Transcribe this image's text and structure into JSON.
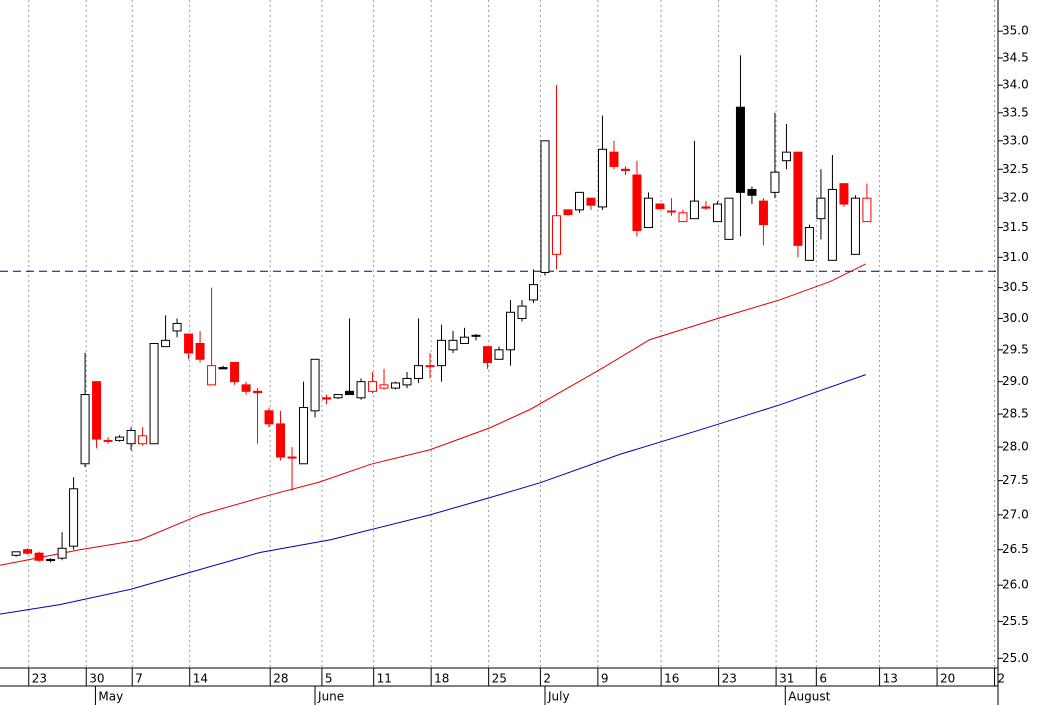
{
  "chart_data": {
    "type": "candlestick",
    "log_scale": true,
    "grid": true,
    "x": [
      1.4,
      2.4,
      3.4,
      4.4,
      5.4,
      6.4,
      7.4,
      8.4,
      9.4,
      10.4,
      11.4,
      12.4,
      13.4,
      14.4,
      15.4,
      16.4,
      17.4,
      18.4,
      19.4,
      20.4,
      21.4,
      22.4,
      23.4,
      24.4,
      25.4,
      26.4,
      27.4,
      28.4,
      29.4,
      30.4,
      31.4,
      32.4,
      33.4,
      34.4,
      35.4,
      36.4,
      37.4,
      38.4,
      39.4,
      40.4,
      41.4,
      42.4,
      43.4,
      44.4,
      45.4,
      46.4,
      47.4,
      48.4,
      49.4,
      50.4,
      51.4,
      52.4,
      53.4,
      54.4,
      55.4,
      56.4,
      57.4,
      58.4,
      59.4,
      60.4,
      61.4,
      62.4,
      63.4,
      64.4,
      65.4,
      66.4,
      67.4,
      68.4,
      69.4,
      70.4,
      71.4,
      72.4,
      73.4,
      74.4,
      75.4
    ],
    "open": [
      26.42,
      26.5,
      26.45,
      26.35,
      26.38,
      26.55,
      27.75,
      29.0,
      28.1,
      28.1,
      28.05,
      28.05,
      28.05,
      29.55,
      29.8,
      29.75,
      29.6,
      28.95,
      29.22,
      29.3,
      28.95,
      28.85,
      28.55,
      28.35,
      27.85,
      27.75,
      28.55,
      28.75,
      28.75,
      28.85,
      28.75,
      28.85,
      28.9,
      28.9,
      28.95,
      29.05,
      29.25,
      29.25,
      29.5,
      29.6,
      29.73,
      29.55,
      29.35,
      29.5,
      30.0,
      30.3,
      30.75,
      31.05,
      31.8,
      31.8,
      32.0,
      31.85,
      32.8,
      32.5,
      32.4,
      31.5,
      31.9,
      31.78,
      31.6,
      31.65,
      31.85,
      31.6,
      31.3,
      33.6,
      32.15,
      31.95,
      32.1,
      32.65,
      32.8,
      30.95,
      31.65,
      30.95,
      32.25,
      31.05,
      31.6
    ],
    "high": [
      26.47,
      26.52,
      26.47,
      26.38,
      26.75,
      27.55,
      29.45,
      29.0,
      28.15,
      28.18,
      28.3,
      28.3,
      29.6,
      30.05,
      30.0,
      29.75,
      29.8,
      30.5,
      29.25,
      29.3,
      29.0,
      28.9,
      28.6,
      28.55,
      28.0,
      29.0,
      29.35,
      28.8,
      28.8,
      30.0,
      29.05,
      29.15,
      29.2,
      29.0,
      29.15,
      30.0,
      29.45,
      29.9,
      29.8,
      29.85,
      29.75,
      29.55,
      29.55,
      30.3,
      30.3,
      30.8,
      33.0,
      34.0,
      31.8,
      32.1,
      32.0,
      33.45,
      33.0,
      32.55,
      32.65,
      32.1,
      31.9,
      32.0,
      31.8,
      33.0,
      31.95,
      31.95,
      32.0,
      34.55,
      32.2,
      32.0,
      33.5,
      33.3,
      32.8,
      31.55,
      32.5,
      32.75,
      32.25,
      32.05,
      32.25
    ],
    "low": [
      26.4,
      26.43,
      26.33,
      26.32,
      26.35,
      26.5,
      27.7,
      27.98,
      28.05,
      28.08,
      27.95,
      28.02,
      28.05,
      29.55,
      29.7,
      29.35,
      29.3,
      28.95,
      29.2,
      28.95,
      28.8,
      28.05,
      28.3,
      27.8,
      27.35,
      27.75,
      28.45,
      28.65,
      28.73,
      28.8,
      28.72,
      28.82,
      28.88,
      28.88,
      28.9,
      28.98,
      29.05,
      29.0,
      29.45,
      29.6,
      29.65,
      29.2,
      29.35,
      29.25,
      29.95,
      30.25,
      30.7,
      30.8,
      31.7,
      31.75,
      31.8,
      31.8,
      32.5,
      32.4,
      31.35,
      31.5,
      31.8,
      31.7,
      31.6,
      31.65,
      31.8,
      31.6,
      31.3,
      31.35,
      31.9,
      31.2,
      32.0,
      32.5,
      31.0,
      30.95,
      31.3,
      30.95,
      31.85,
      31.05,
      31.6
    ],
    "close": [
      26.47,
      26.45,
      26.35,
      26.36,
      26.52,
      27.38,
      28.8,
      28.12,
      28.1,
      28.15,
      28.25,
      28.17,
      29.6,
      29.65,
      29.92,
      29.45,
      29.35,
      29.25,
      29.2,
      29.0,
      28.85,
      28.83,
      28.35,
      27.85,
      27.85,
      28.6,
      29.35,
      28.73,
      28.8,
      28.8,
      29.0,
      29.0,
      28.95,
      28.98,
      29.05,
      29.25,
      29.25,
      29.65,
      29.65,
      29.7,
      29.73,
      29.3,
      29.5,
      30.1,
      30.2,
      30.55,
      33.0,
      31.7,
      31.72,
      32.1,
      31.88,
      32.85,
      32.55,
      32.48,
      31.45,
      32.0,
      31.82,
      31.78,
      31.75,
      31.95,
      31.83,
      31.9,
      32.0,
      32.1,
      32.05,
      31.55,
      32.45,
      32.8,
      31.2,
      31.5,
      32.0,
      32.15,
      31.9,
      32.0,
      32.0
    ],
    "colors": [
      "black",
      "red",
      "red",
      "black",
      "black",
      "black",
      "black",
      "red",
      "red",
      "black",
      "black",
      "red",
      "black",
      "black",
      "black",
      "red",
      "red",
      "red",
      "black",
      "red",
      "red",
      "red",
      "red",
      "red",
      "red",
      "black",
      "black",
      "red",
      "black",
      "black",
      "black",
      "red",
      "red",
      "black",
      "black",
      "black",
      "red",
      "black",
      "black",
      "black",
      "black",
      "red",
      "black",
      "black",
      "black",
      "black",
      "black",
      "red",
      "red",
      "black",
      "red",
      "black",
      "red",
      "red",
      "red",
      "black",
      "red",
      "red",
      "red",
      "black",
      "red",
      "black",
      "black",
      "black",
      "black",
      "red",
      "black",
      "black",
      "red",
      "black",
      "black",
      "black",
      "red",
      "black",
      "red"
    ],
    "moving_averages": [
      {
        "color": "#e00000",
        "x": [
          0,
          7,
          12.2,
          17.4,
          23.5,
          27.8,
          32.2,
          37.4,
          42.6,
          46.1,
          52.2,
          56.5,
          62.6,
          67.8,
          72.2,
          75.3
        ],
        "values": [
          26.28,
          26.5,
          26.64,
          27.0,
          27.29,
          27.48,
          27.74,
          27.96,
          28.29,
          28.57,
          29.19,
          29.66,
          30.01,
          30.3,
          30.6,
          30.89
        ]
      },
      {
        "color": "#0000b0",
        "x": [
          0,
          5.2,
          11.3,
          17.4,
          22.6,
          28.7,
          37.4,
          42.6,
          47,
          53.9,
          60.9,
          67.8,
          75.3
        ],
        "values": [
          25.6,
          25.73,
          25.94,
          26.22,
          26.46,
          26.64,
          27.0,
          27.25,
          27.47,
          27.89,
          28.26,
          28.64,
          29.11
        ]
      }
    ],
    "hline": 30.77,
    "hline_color": "#000080",
    "xlim": [
      0,
      86.8
    ],
    "ylim": [
      24.87,
      35.59
    ],
    "xticks": [
      {
        "value": 2.5,
        "label": "23"
      },
      {
        "value": 7.5,
        "label": "30"
      },
      {
        "value": 11.5,
        "label": "7"
      },
      {
        "value": 16.5,
        "label": "14"
      },
      {
        "value": 23.5,
        "label": "28"
      },
      {
        "value": 28,
        "label": "5"
      },
      {
        "value": 32.5,
        "label": "11"
      },
      {
        "value": 37.5,
        "label": "18"
      },
      {
        "value": 42.5,
        "label": "25"
      },
      {
        "value": 47,
        "label": "2"
      },
      {
        "value": 52,
        "label": "9"
      },
      {
        "value": 57.5,
        "label": "16"
      },
      {
        "value": 62.5,
        "label": "23"
      },
      {
        "value": 67.5,
        "label": "31"
      },
      {
        "value": 71,
        "label": "6"
      },
      {
        "value": 76.5,
        "label": "13"
      },
      {
        "value": 81.5,
        "label": "20"
      },
      {
        "value": 86.5,
        "label": "2"
      }
    ],
    "month_ticks": [
      {
        "value": 8.3,
        "label": "May"
      },
      {
        "value": 27.4,
        "label": "June"
      },
      {
        "value": 47.4,
        "label": "July"
      },
      {
        "value": 68.3,
        "label": "August"
      }
    ],
    "yticks": [
      {
        "value": 25,
        "label": "25.0"
      },
      25.5,
      {
        "value": 26,
        "label": "26.0"
      },
      26.5,
      {
        "value": 27,
        "label": "27.0"
      },
      27.5,
      {
        "value": 28,
        "label": "28.0"
      },
      28.5,
      {
        "value": 29,
        "label": "29.0"
      },
      29.5,
      {
        "value": 30,
        "label": "30.0"
      },
      30.5,
      {
        "value": 31,
        "label": "31.0"
      },
      31.5,
      {
        "value": 32,
        "label": "32.0"
      },
      32.5,
      {
        "value": 33,
        "label": "33.0"
      },
      33.5,
      {
        "value": 34,
        "label": "34.0"
      },
      34.5,
      {
        "value": 35,
        "label": "35.0"
      }
    ]
  }
}
